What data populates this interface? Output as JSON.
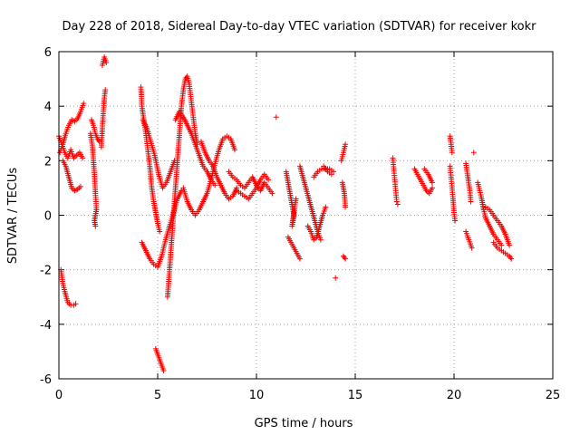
{
  "chart_data": {
    "type": "scatter",
    "title": "Day 228 of 2018, Sidereal Day-to-day VTEC variation (SDTVAR) for receiver kokr",
    "xlabel": "GPS time / hours",
    "ylabel": "SDTVAR / TECUs",
    "xlim": [
      0,
      25
    ],
    "ylim": [
      -6,
      6
    ],
    "xticks": [
      0,
      5,
      10,
      15,
      20,
      25
    ],
    "yticks": [
      -6,
      -4,
      -2,
      0,
      2,
      4,
      6
    ],
    "xtick_labels": [
      "0",
      "5",
      "10",
      "15",
      "20",
      "25"
    ],
    "ytick_labels": [
      "-6",
      "-4",
      "-2",
      "0",
      "2",
      "4",
      "6"
    ],
    "grid": true,
    "marker": "+",
    "series": [
      {
        "name": "SDTVAR",
        "color": "#ff0000",
        "segments": [
          [
            [
              0.05,
              2.3
            ],
            [
              0.2,
              2.6
            ],
            [
              0.35,
              3.0
            ],
            [
              0.5,
              3.3
            ],
            [
              0.65,
              3.5
            ],
            [
              0.8,
              3.45
            ],
            [
              0.95,
              3.55
            ],
            [
              1.1,
              3.8
            ],
            [
              1.25,
              4.1
            ]
          ],
          [
            [
              0.0,
              2.9
            ],
            [
              0.15,
              2.6
            ],
            [
              0.3,
              2.3
            ],
            [
              0.45,
              2.1
            ],
            [
              0.6,
              2.4
            ],
            [
              0.75,
              2.1
            ],
            [
              0.9,
              2.2
            ],
            [
              1.05,
              2.3
            ],
            [
              1.2,
              2.1
            ]
          ],
          [
            [
              0.2,
              2.0
            ],
            [
              0.35,
              1.8
            ],
            [
              0.5,
              1.4
            ],
            [
              0.65,
              1.0
            ],
            [
              0.8,
              0.9
            ],
            [
              0.95,
              0.95
            ],
            [
              1.1,
              1.05
            ]
          ],
          [
            [
              0.1,
              -2.0
            ],
            [
              0.2,
              -2.5
            ],
            [
              0.3,
              -2.8
            ],
            [
              0.45,
              -3.2
            ],
            [
              0.6,
              -3.3
            ],
            [
              0.75,
              -3.3
            ],
            [
              0.85,
              -3.25
            ]
          ],
          [
            [
              1.6,
              3.0
            ],
            [
              1.7,
              2.5
            ],
            [
              1.8,
              1.5
            ],
            [
              1.85,
              0.8
            ],
            [
              1.9,
              0.2
            ],
            [
              1.8,
              -0.2
            ],
            [
              1.85,
              -0.4
            ]
          ],
          [
            [
              1.65,
              3.5
            ],
            [
              1.75,
              3.3
            ],
            [
              1.85,
              3.0
            ],
            [
              1.95,
              2.8
            ],
            [
              2.05,
              2.7
            ]
          ],
          [
            [
              2.15,
              2.5
            ],
            [
              2.2,
              3.2
            ],
            [
              2.25,
              3.8
            ],
            [
              2.3,
              4.3
            ],
            [
              2.35,
              4.6
            ]
          ],
          [
            [
              2.2,
              5.5
            ],
            [
              2.3,
              5.8
            ],
            [
              2.4,
              5.6
            ]
          ],
          [
            [
              4.15,
              4.7
            ],
            [
              4.2,
              4.0
            ],
            [
              4.3,
              3.5
            ],
            [
              4.4,
              3.0
            ],
            [
              4.5,
              2.4
            ],
            [
              4.6,
              1.8
            ],
            [
              4.7,
              1.0
            ],
            [
              4.8,
              0.5
            ],
            [
              4.9,
              0.1
            ],
            [
              5.0,
              -0.3
            ],
            [
              5.1,
              -0.6
            ]
          ],
          [
            [
              4.25,
              3.5
            ],
            [
              4.45,
              3.2
            ],
            [
              4.65,
              2.7
            ],
            [
              4.85,
              2.2
            ],
            [
              5.05,
              1.5
            ],
            [
              5.25,
              1.0
            ],
            [
              5.45,
              1.2
            ],
            [
              5.65,
              1.6
            ],
            [
              5.85,
              2.0
            ]
          ],
          [
            [
              4.2,
              -1.0
            ],
            [
              4.4,
              -1.3
            ],
            [
              4.6,
              -1.6
            ],
            [
              4.8,
              -1.8
            ],
            [
              5.0,
              -1.9
            ],
            [
              5.2,
              -1.5
            ],
            [
              5.4,
              -0.9
            ],
            [
              5.6,
              -0.4
            ],
            [
              5.8,
              0.1
            ],
            [
              6.0,
              0.6
            ],
            [
              6.2,
              0.9
            ]
          ],
          [
            [
              4.9,
              -4.9
            ],
            [
              5.0,
              -5.1
            ],
            [
              5.1,
              -5.3
            ],
            [
              5.2,
              -5.5
            ],
            [
              5.3,
              -5.7
            ]
          ],
          [
            [
              5.5,
              -3.0
            ],
            [
              5.6,
              -2.0
            ],
            [
              5.7,
              -1.0
            ],
            [
              5.8,
              0.0
            ],
            [
              5.9,
              1.0
            ],
            [
              6.0,
              2.0
            ],
            [
              6.1,
              3.0
            ],
            [
              6.2,
              4.0
            ],
            [
              6.3,
              4.6
            ],
            [
              6.4,
              5.0
            ],
            [
              6.5,
              5.1
            ],
            [
              6.6,
              4.8
            ],
            [
              6.7,
              4.2
            ],
            [
              6.8,
              3.6
            ],
            [
              6.9,
              3.0
            ],
            [
              7.0,
              2.6
            ]
          ],
          [
            [
              5.9,
              3.5
            ],
            [
              6.1,
              3.8
            ],
            [
              6.3,
              3.6
            ],
            [
              6.5,
              3.3
            ],
            [
              6.7,
              3.0
            ],
            [
              6.9,
              2.6
            ],
            [
              7.1,
              2.2
            ],
            [
              7.3,
              1.8
            ],
            [
              7.5,
              1.6
            ],
            [
              7.7,
              1.3
            ],
            [
              7.9,
              1.1
            ]
          ],
          [
            [
              6.3,
              1.0
            ],
            [
              6.5,
              0.5
            ],
            [
              6.7,
              0.2
            ],
            [
              6.9,
              0.0
            ],
            [
              7.1,
              0.2
            ],
            [
              7.3,
              0.5
            ],
            [
              7.5,
              0.8
            ],
            [
              7.7,
              1.3
            ],
            [
              7.9,
              1.9
            ],
            [
              8.1,
              2.4
            ],
            [
              8.3,
              2.8
            ],
            [
              8.5,
              2.9
            ],
            [
              8.7,
              2.8
            ],
            [
              8.9,
              2.4
            ]
          ],
          [
            [
              7.2,
              2.7
            ],
            [
              7.4,
              2.3
            ],
            [
              7.6,
              2.0
            ],
            [
              7.8,
              1.8
            ],
            [
              8.0,
              1.4
            ],
            [
              8.2,
              1.1
            ],
            [
              8.4,
              0.8
            ],
            [
              8.6,
              0.6
            ],
            [
              8.8,
              0.7
            ],
            [
              9.0,
              1.0
            ]
          ],
          [
            [
              8.6,
              1.6
            ],
            [
              8.8,
              1.4
            ],
            [
              9.0,
              1.3
            ],
            [
              9.2,
              1.1
            ],
            [
              9.4,
              1.0
            ],
            [
              9.6,
              1.2
            ],
            [
              9.8,
              1.4
            ],
            [
              10.0,
              1.1
            ],
            [
              10.2,
              0.9
            ],
            [
              10.4,
              1.2
            ],
            [
              10.6,
              1.0
            ],
            [
              10.8,
              0.8
            ]
          ],
          [
            [
              9.0,
              0.9
            ],
            [
              9.2,
              0.8
            ],
            [
              9.4,
              0.7
            ],
            [
              9.6,
              0.6
            ],
            [
              9.8,
              0.8
            ],
            [
              10.0,
              1.0
            ],
            [
              10.2,
              1.3
            ],
            [
              10.4,
              1.5
            ],
            [
              10.6,
              1.3
            ]
          ],
          [
            [
              11.0,
              3.6
            ]
          ],
          [
            [
              11.5,
              1.6
            ],
            [
              11.6,
              1.2
            ],
            [
              11.7,
              0.8
            ],
            [
              11.8,
              0.4
            ],
            [
              11.9,
              0.0
            ],
            [
              11.8,
              -0.4
            ],
            [
              12.0,
              0.6
            ]
          ],
          [
            [
              11.6,
              -0.8
            ],
            [
              11.75,
              -1.0
            ],
            [
              11.9,
              -1.2
            ],
            [
              12.05,
              -1.4
            ],
            [
              12.2,
              -1.6
            ]
          ],
          [
            [
              12.2,
              1.8
            ],
            [
              12.35,
              1.4
            ],
            [
              12.5,
              1.0
            ],
            [
              12.65,
              0.6
            ],
            [
              12.8,
              0.2
            ],
            [
              12.95,
              -0.2
            ],
            [
              13.1,
              -0.6
            ],
            [
              13.25,
              -0.9
            ]
          ],
          [
            [
              12.6,
              -0.4
            ],
            [
              12.75,
              -0.6
            ],
            [
              12.9,
              -0.9
            ],
            [
              13.05,
              -0.8
            ],
            [
              13.2,
              -0.4
            ],
            [
              13.35,
              0.0
            ],
            [
              13.5,
              0.3
            ]
          ],
          [
            [
              12.9,
              1.4
            ],
            [
              13.1,
              1.6
            ],
            [
              13.3,
              1.7
            ],
            [
              13.5,
              1.7
            ],
            [
              13.7,
              1.7
            ],
            [
              13.9,
              1.6
            ]
          ],
          [
            [
              13.4,
              1.8
            ],
            [
              13.6,
              1.6
            ],
            [
              13.8,
              1.5
            ]
          ],
          [
            [
              14.0,
              -2.3
            ]
          ],
          [
            [
              14.3,
              2.0
            ],
            [
              14.4,
              2.3
            ],
            [
              14.5,
              2.6
            ]
          ],
          [
            [
              14.35,
              1.2
            ],
            [
              14.45,
              0.8
            ],
            [
              14.5,
              0.3
            ]
          ],
          [
            [
              14.4,
              -1.5
            ],
            [
              14.5,
              -1.6
            ]
          ],
          [
            [
              16.9,
              2.1
            ],
            [
              16.95,
              1.7
            ],
            [
              17.0,
              1.3
            ],
            [
              17.05,
              0.9
            ],
            [
              17.1,
              0.5
            ],
            [
              17.15,
              0.4
            ]
          ],
          [
            [
              18.0,
              1.7
            ],
            [
              18.15,
              1.5
            ],
            [
              18.3,
              1.3
            ],
            [
              18.45,
              1.1
            ],
            [
              18.6,
              0.9
            ],
            [
              18.75,
              0.8
            ],
            [
              18.9,
              1.0
            ]
          ],
          [
            [
              18.5,
              1.7
            ],
            [
              18.7,
              1.5
            ],
            [
              18.9,
              1.2
            ]
          ],
          [
            [
              19.8,
              2.9
            ],
            [
              19.85,
              2.6
            ],
            [
              19.9,
              2.3
            ]
          ],
          [
            [
              19.8,
              1.8
            ],
            [
              19.85,
              1.4
            ],
            [
              19.9,
              1.0
            ],
            [
              19.95,
              0.6
            ],
            [
              20.0,
              0.1
            ],
            [
              20.05,
              -0.2
            ]
          ],
          [
            [
              20.6,
              1.9
            ],
            [
              20.7,
              1.4
            ],
            [
              20.8,
              0.9
            ],
            [
              20.85,
              0.5
            ]
          ],
          [
            [
              20.6,
              -0.6
            ],
            [
              20.75,
              -0.9
            ],
            [
              20.9,
              -1.2
            ]
          ],
          [
            [
              21.0,
              2.3
            ]
          ],
          [
            [
              21.2,
              1.2
            ],
            [
              21.3,
              0.9
            ],
            [
              21.4,
              0.6
            ],
            [
              21.5,
              0.2
            ],
            [
              21.6,
              -0.1
            ],
            [
              21.8,
              -0.4
            ],
            [
              22.0,
              -0.7
            ],
            [
              22.2,
              -0.9
            ],
            [
              22.4,
              -1.1
            ]
          ],
          [
            [
              21.6,
              0.3
            ],
            [
              21.8,
              0.2
            ],
            [
              22.0,
              0.0
            ],
            [
              22.2,
              -0.2
            ],
            [
              22.4,
              -0.4
            ],
            [
              22.6,
              -0.7
            ],
            [
              22.8,
              -1.1
            ]
          ],
          [
            [
              22.0,
              -1.0
            ],
            [
              22.2,
              -1.2
            ],
            [
              22.4,
              -1.3
            ],
            [
              22.6,
              -1.4
            ],
            [
              22.8,
              -1.5
            ],
            [
              22.9,
              -1.6
            ]
          ]
        ]
      }
    ]
  }
}
